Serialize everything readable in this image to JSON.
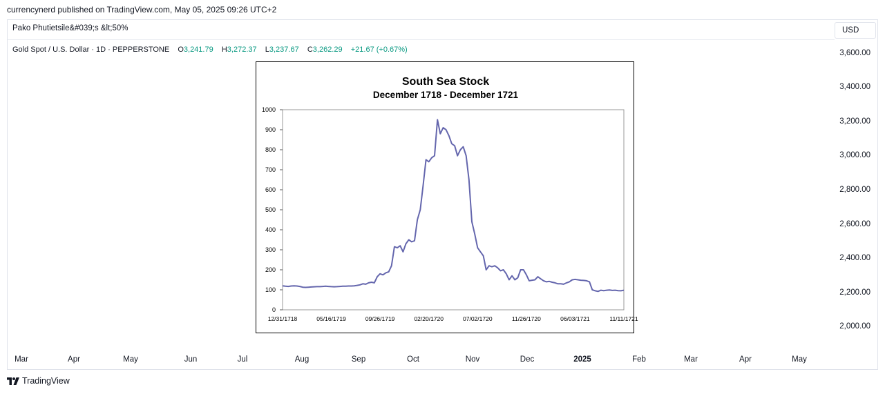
{
  "publish_line": "currencynerd published on TradingView.com, May 05, 2025 09:26 UTC+2",
  "chart_title": "Pako Phutietsile&#039;s &lt;50%",
  "currency": "USD",
  "legend": {
    "symbol": "Gold Spot / U.S. Dollar · 1D · PEPPERSTONE",
    "o_label": "O",
    "o_value": "3,241.79",
    "h_label": "H",
    "h_value": "3,272.37",
    "l_label": "L",
    "l_value": "3,237.67",
    "c_label": "C",
    "c_value": "3,262.29",
    "change": "+21.67 (+0.67%)",
    "positive_color": "#089981"
  },
  "y_axis_ticks": [
    "3,600.00",
    "3,400.00",
    "3,200.00",
    "3,000.00",
    "2,800.00",
    "2,600.00",
    "2,400.00",
    "2,200.00",
    "2,000.00"
  ],
  "x_axis_ticks": [
    {
      "label": "Mar",
      "bold": false
    },
    {
      "label": "Apr",
      "bold": false
    },
    {
      "label": "May",
      "bold": false
    },
    {
      "label": "Jun",
      "bold": false
    },
    {
      "label": "Jul",
      "bold": false
    },
    {
      "label": "Aug",
      "bold": false
    },
    {
      "label": "Sep",
      "bold": false
    },
    {
      "label": "Oct",
      "bold": false
    },
    {
      "label": "Nov",
      "bold": false
    },
    {
      "label": "Dec",
      "bold": false
    },
    {
      "label": "2025",
      "bold": true
    },
    {
      "label": "Feb",
      "bold": false
    },
    {
      "label": "Mar",
      "bold": false
    },
    {
      "label": "Apr",
      "bold": false
    },
    {
      "label": "May",
      "bold": false
    }
  ],
  "brand": "TradingView",
  "chart_data": {
    "type": "line",
    "title": "South Sea Stock",
    "subtitle": "December 1718 - December 1721",
    "xlabel": "",
    "ylabel": "",
    "ylim": [
      0,
      1000
    ],
    "yticks": [
      "1000",
      "900",
      "800",
      "700",
      "600",
      "500",
      "400",
      "300",
      "200",
      "100",
      "0"
    ],
    "x_tick_labels": [
      "12/31/1718",
      "05/16/1719",
      "09/26/1719",
      "02/20/1720",
      "07/02/1720",
      "11/26/1720",
      "06/03/1721",
      "11/11/1721"
    ],
    "line_color": "#6466ad",
    "grid": false,
    "series": [
      {
        "values": [
          120,
          118,
          117,
          119,
          120,
          119,
          117,
          113,
          112,
          113,
          114,
          115,
          116,
          116,
          117,
          118,
          117,
          116,
          115,
          116,
          117,
          118,
          118,
          119,
          119,
          120,
          122,
          125,
          130,
          128,
          135,
          138,
          135,
          165,
          180,
          175,
          185,
          190,
          220,
          315,
          310,
          320,
          290,
          330,
          350,
          340,
          345,
          450,
          500,
          620,
          750,
          740,
          760,
          770,
          950,
          880,
          910,
          900,
          870,
          830,
          820,
          770,
          800,
          815,
          770,
          650,
          440,
          380,
          310,
          290,
          270,
          200,
          220,
          215,
          220,
          210,
          195,
          200,
          180,
          150,
          170,
          150,
          160,
          200,
          200,
          175,
          145,
          148,
          150,
          165,
          155,
          145,
          140,
          142,
          138,
          135,
          130,
          130,
          128,
          135,
          140,
          150,
          152,
          150,
          148,
          147,
          145,
          140,
          100,
          95,
          92,
          98,
          96,
          98,
          99,
          97,
          98,
          96,
          95,
          98
        ]
      }
    ]
  }
}
